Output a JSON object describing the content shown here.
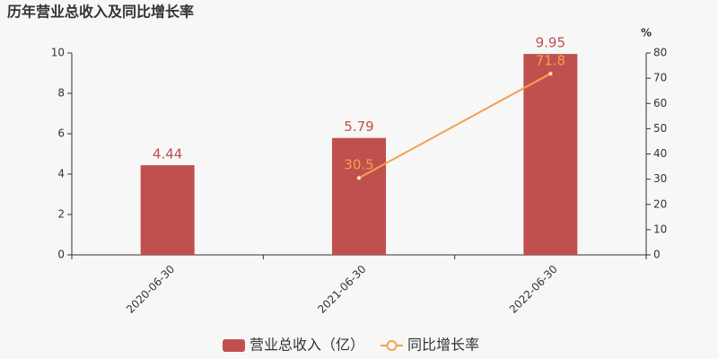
{
  "chart_data": {
    "type": "bar",
    "title": "历年营业总收入及同比增长率",
    "categories": [
      "2020-06-30",
      "2021-06-30",
      "2022-06-30"
    ],
    "series": [
      {
        "name": "营业总收入（亿）",
        "type": "bar",
        "color": "#c0504e",
        "values": [
          4.44,
          5.79,
          9.95
        ]
      },
      {
        "name": "同比增长率",
        "type": "line",
        "axis": "y2",
        "color": "#f5a04e",
        "values": [
          null,
          30.5,
          71.8
        ]
      }
    ],
    "ylim": [
      0,
      10
    ],
    "yticks": [
      0,
      2,
      4,
      6,
      8,
      10
    ],
    "y2lim": [
      0,
      80
    ],
    "y2ticks": [
      0,
      10,
      20,
      30,
      40,
      50,
      60,
      70,
      80
    ],
    "y2label": "%",
    "legend": "bottom"
  }
}
